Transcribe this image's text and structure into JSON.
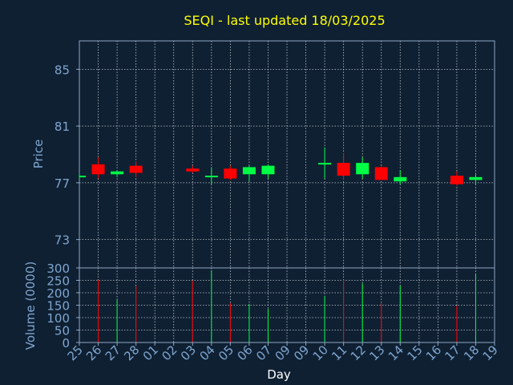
{
  "chart_data": [
    {
      "type": "candlestick",
      "title": "SEQI - last updated 18/03/2025",
      "ylabel": "Price",
      "ylim": [
        71,
        87
      ],
      "yticks": [
        73,
        77,
        81,
        85
      ],
      "grid": true,
      "candles": [
        {
          "day": "25",
          "open": 77.5,
          "high": 77.6,
          "low": 77.3,
          "close": 77.5
        },
        {
          "day": "26",
          "open": 78.3,
          "high": 78.8,
          "low": 77.3,
          "close": 77.6
        },
        {
          "day": "27",
          "open": 77.6,
          "high": 77.9,
          "low": 77.4,
          "close": 77.8
        },
        {
          "day": "28",
          "open": 78.2,
          "high": 78.5,
          "low": 77.4,
          "close": 77.7
        },
        {
          "day": "03",
          "open": 78.0,
          "high": 78.2,
          "low": 77.7,
          "close": 77.8
        },
        {
          "day": "04",
          "open": 77.4,
          "high": 78.1,
          "low": 76.9,
          "close": 77.5
        },
        {
          "day": "05",
          "open": 78.0,
          "high": 78.2,
          "low": 77.2,
          "close": 77.3
        },
        {
          "day": "06",
          "open": 77.6,
          "high": 78.2,
          "low": 77.1,
          "close": 78.1
        },
        {
          "day": "07",
          "open": 77.6,
          "high": 78.3,
          "low": 77.3,
          "close": 78.2
        },
        {
          "day": "10",
          "open": 78.3,
          "high": 79.5,
          "low": 77.3,
          "close": 78.4
        },
        {
          "day": "11",
          "open": 78.4,
          "high": 79.1,
          "low": 77.2,
          "close": 77.5
        },
        {
          "day": "12",
          "open": 77.6,
          "high": 78.8,
          "low": 77.3,
          "close": 78.4
        },
        {
          "day": "13",
          "open": 78.1,
          "high": 78.2,
          "low": 77.2,
          "close": 77.2
        },
        {
          "day": "14",
          "open": 77.1,
          "high": 77.9,
          "low": 76.9,
          "close": 77.4
        },
        {
          "day": "17",
          "open": 77.5,
          "high": 77.8,
          "low": 76.8,
          "close": 76.9
        },
        {
          "day": "18",
          "open": 77.2,
          "high": 77.6,
          "low": 76.9,
          "close": 77.4
        }
      ]
    },
    {
      "type": "bar",
      "xlabel": "Day",
      "ylabel": "Volume (0000)",
      "ylim": [
        0,
        300
      ],
      "yticks": [
        0,
        50,
        100,
        150,
        200,
        250,
        300
      ],
      "categories": [
        "25",
        "26",
        "27",
        "28",
        "01",
        "02",
        "03",
        "04",
        "05",
        "06",
        "07",
        "09",
        "09",
        "10",
        "11",
        "12",
        "13",
        "14",
        "15",
        "16",
        "17",
        "18",
        "19"
      ],
      "volumes": [
        {
          "day": "26",
          "value": 252,
          "direction": "down"
        },
        {
          "day": "27",
          "value": 172,
          "direction": "up"
        },
        {
          "day": "28",
          "value": 228,
          "direction": "down"
        },
        {
          "day": "03",
          "value": 248,
          "direction": "down"
        },
        {
          "day": "04",
          "value": 290,
          "direction": "up"
        },
        {
          "day": "05",
          "value": 158,
          "direction": "down"
        },
        {
          "day": "06",
          "value": 155,
          "direction": "up"
        },
        {
          "day": "07",
          "value": 135,
          "direction": "up"
        },
        {
          "day": "10",
          "value": 188,
          "direction": "up"
        },
        {
          "day": "11",
          "value": 252,
          "direction": "down"
        },
        {
          "day": "12",
          "value": 238,
          "direction": "up"
        },
        {
          "day": "13",
          "value": 158,
          "direction": "down"
        },
        {
          "day": "14",
          "value": 228,
          "direction": "up"
        },
        {
          "day": "17",
          "value": 148,
          "direction": "down"
        },
        {
          "day": "18",
          "value": 278,
          "direction": "up"
        }
      ]
    }
  ],
  "colors": {
    "background": "#0f2033",
    "text": "#7fa6cf",
    "title": "#ffff00",
    "axis_label": "#ffffff",
    "up": "#00ff44",
    "down": "#ff0000",
    "frame": "#8fa6c0",
    "grid": "#ffffff"
  }
}
